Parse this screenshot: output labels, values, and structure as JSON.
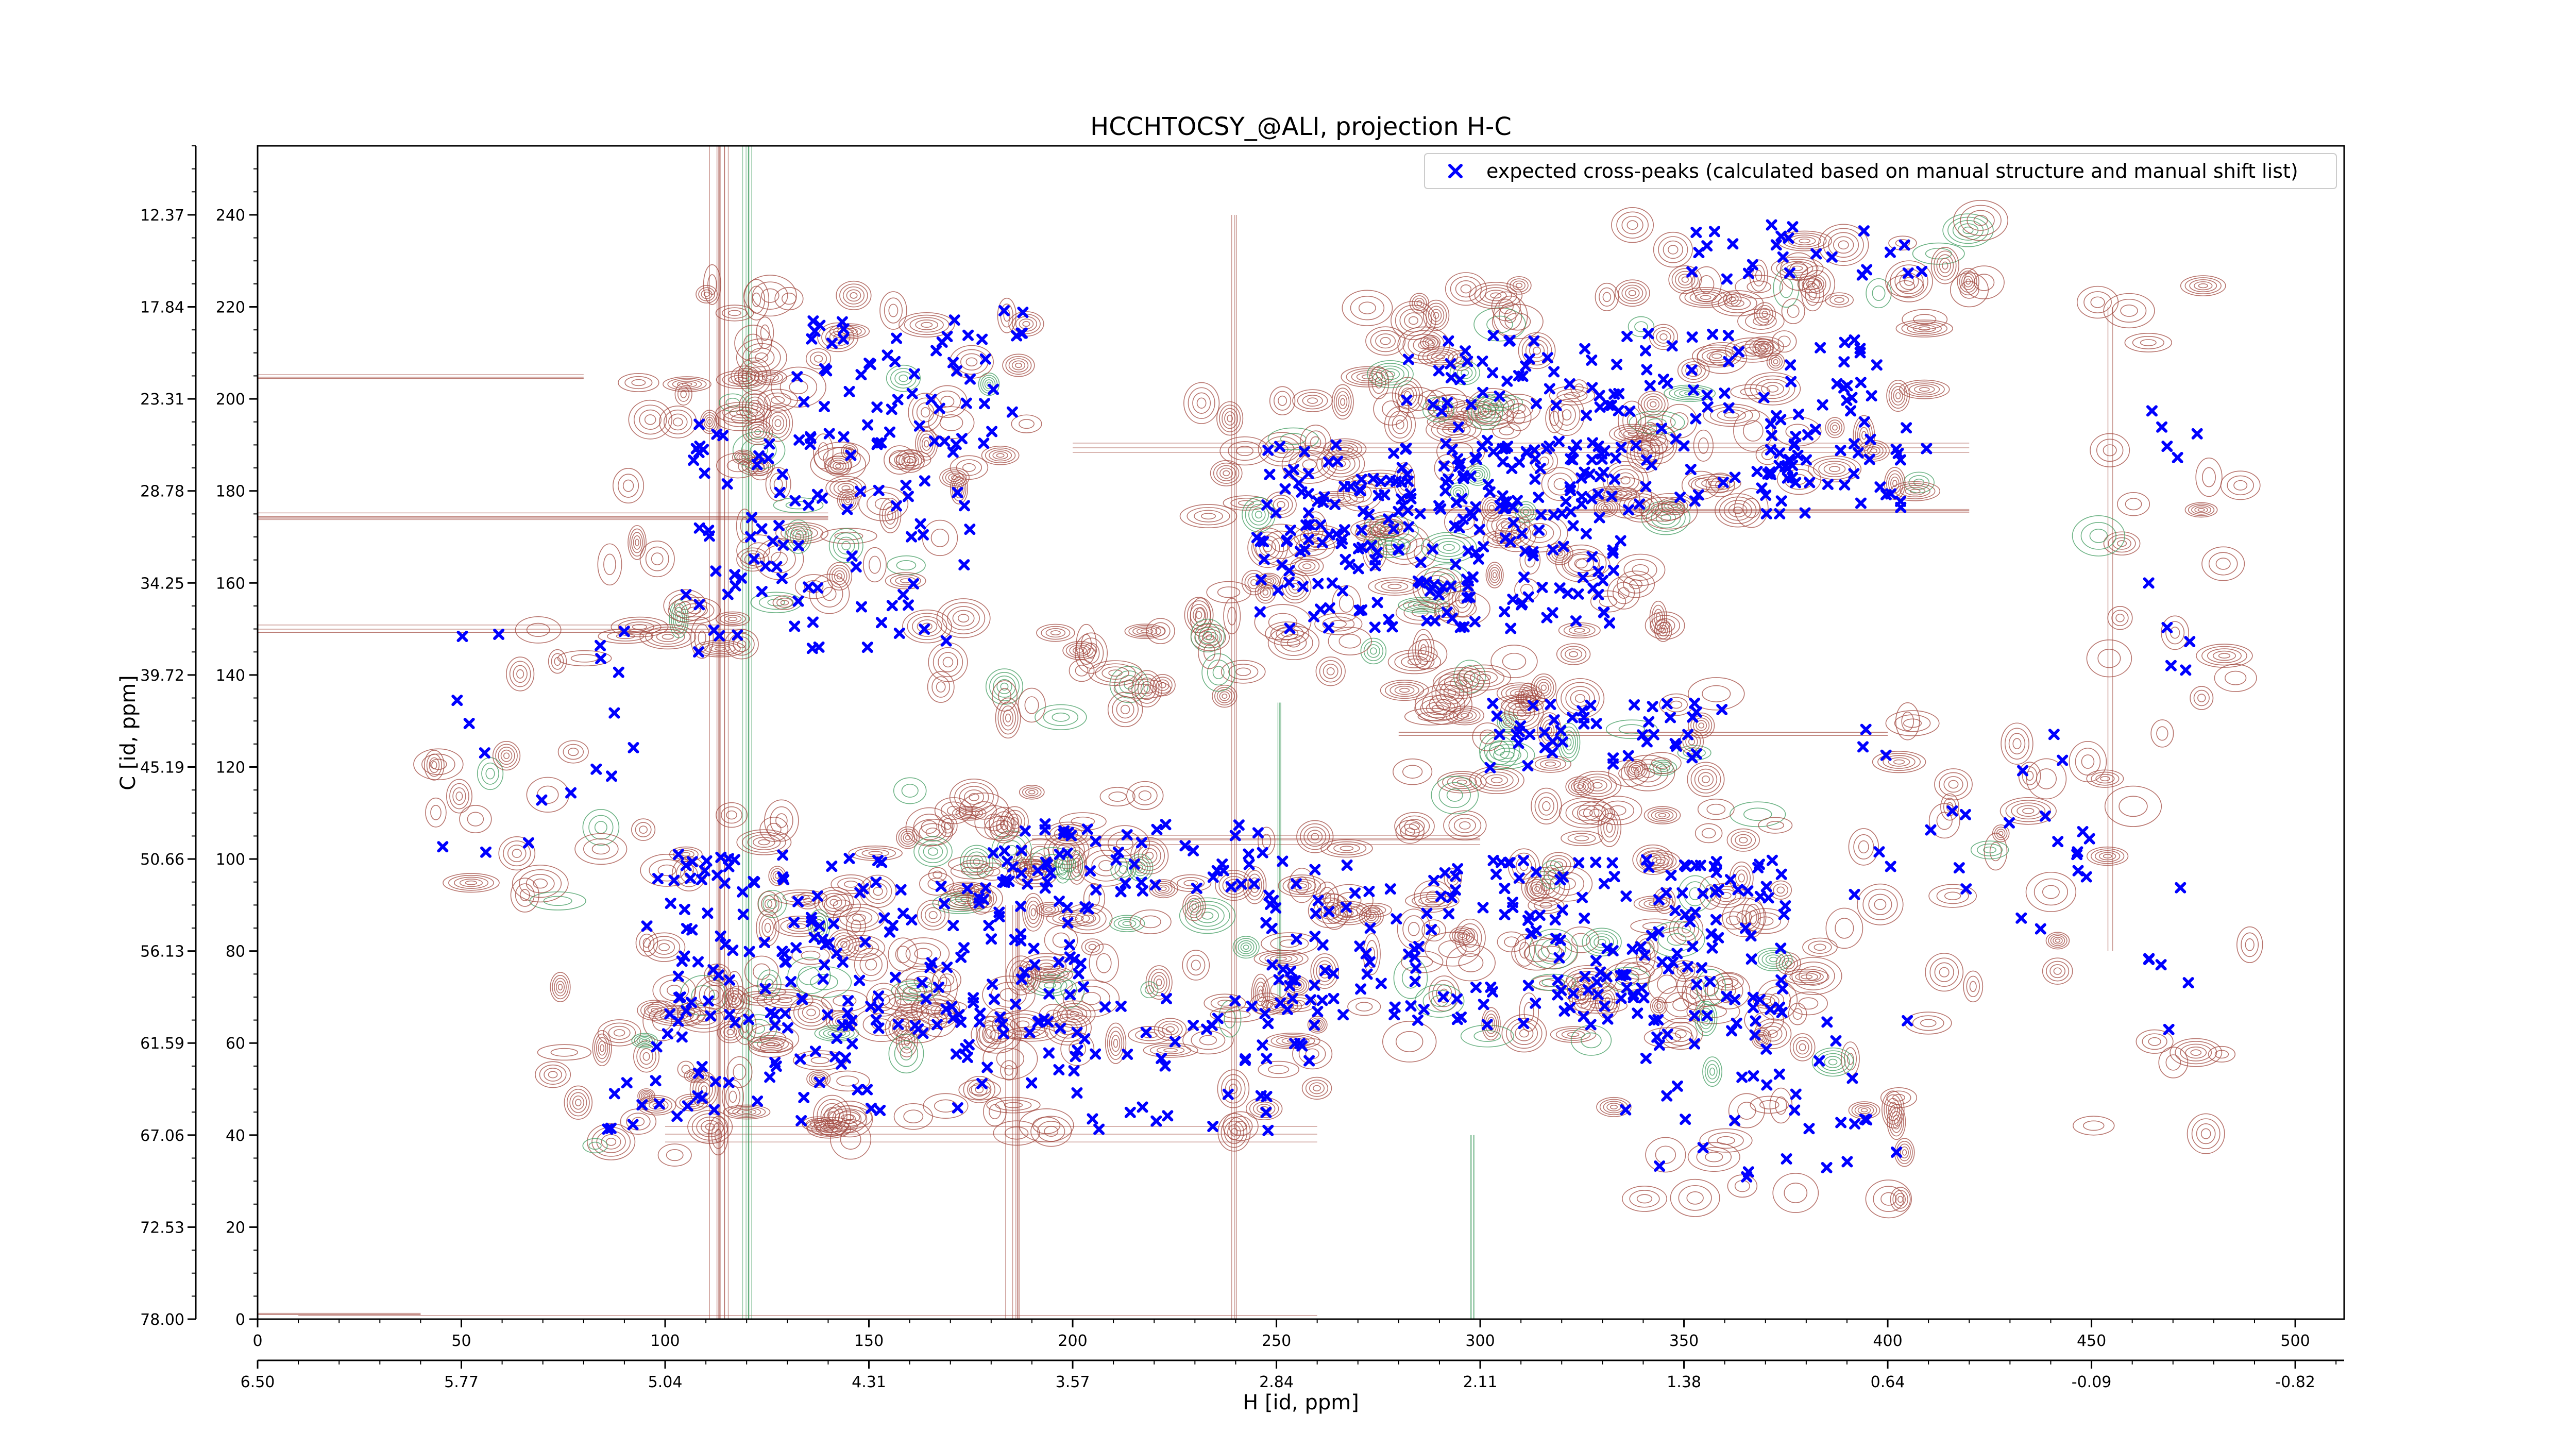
{
  "chart_data": {
    "type": "scatter",
    "title": "HCCHTOCSY_@ALI, projection H-C",
    "xlabel": "H [id, ppm]",
    "ylabel": "C [id, ppm]",
    "x_index_ticks": [
      "0",
      "50",
      "100",
      "150",
      "200",
      "250",
      "300",
      "350",
      "400",
      "450",
      "500"
    ],
    "x_ppm_ticks": [
      "6.50",
      "5.77",
      "5.04",
      "4.31",
      "3.57",
      "2.84",
      "2.11",
      "1.38",
      "0.64",
      "-0.09",
      "-0.82"
    ],
    "y_index_ticks": [
      "0",
      "20",
      "40",
      "60",
      "80",
      "100",
      "120",
      "140",
      "160",
      "180",
      "200",
      "220",
      "240"
    ],
    "y_ppm_ticks": [
      "78.00",
      "72.53",
      "67.06",
      "61.59",
      "56.13",
      "50.66",
      "45.19",
      "39.72",
      "34.25",
      "28.78",
      "23.31",
      "17.84",
      "12.37"
    ],
    "xlim": [
      0,
      512
    ],
    "ylim": [
      0,
      255
    ],
    "grid": false,
    "legend_position": "top-right",
    "series": [
      {
        "name": "expected cross-peaks (calculated based on manual structure and manual shift list)",
        "color": "#0000ff",
        "marker": "x"
      }
    ],
    "contour_colors": {
      "positive": "#a0473d",
      "negative": "#3c9a5c"
    }
  }
}
